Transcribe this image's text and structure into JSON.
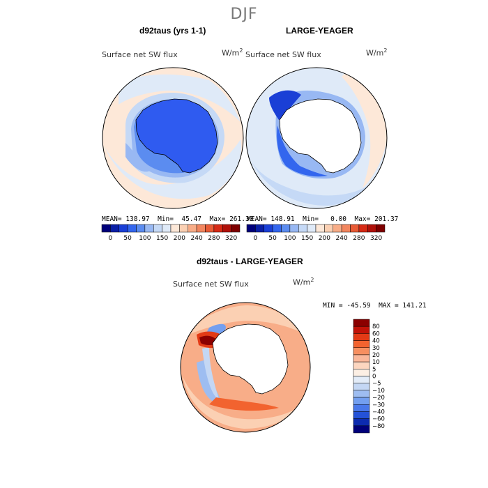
{
  "figure": {
    "season": "DJF",
    "panels": [
      {
        "title": "d92taus (yrs 1-1)",
        "variable": "Surface net SW flux",
        "units_base": "W/m",
        "units_exp": "2",
        "stats": {
          "mean": "MEAN= 138.97",
          "min": "Min=  45.47",
          "max": "Max= 261.30"
        }
      },
      {
        "title": "LARGE-YEAGER",
        "variable": "Surface net SW flux",
        "units_base": "W/m",
        "units_exp": "2",
        "stats": {
          "mean": "MEAN= 148.91",
          "min": "Min=   0.00",
          "max": "Max= 201.37"
        }
      },
      {
        "title": "d92taus - LARGE-YEAGER",
        "variable": "Surface net SW flux",
        "units_base": "W/m",
        "units_exp": "2",
        "stats_line": "MIN = -45.59  MAX = 141.21"
      }
    ],
    "abs_colorbar": {
      "colors": [
        "#00007a",
        "#0a1fa6",
        "#1a3fd6",
        "#3366ee",
        "#5b8cf0",
        "#98b8f3",
        "#c5d9f6",
        "#dfeaf8",
        "#fde8d8",
        "#fbd0b3",
        "#f8ad88",
        "#f2865f",
        "#e85a35",
        "#d62a15",
        "#b0110a",
        "#7e0000"
      ],
      "tick_labels": [
        "0",
        "50",
        "100",
        "150",
        "200",
        "240",
        "280",
        "320"
      ]
    },
    "diff_colorbar": {
      "colors": [
        "#8b0000",
        "#c21208",
        "#e33a16",
        "#f2632f",
        "#f78f60",
        "#fab79a",
        "#fcd6c0",
        "#fcefe4",
        "#e3ecf8",
        "#c4d7f4",
        "#9ebdf1",
        "#739ff0",
        "#4978ea",
        "#2452d8",
        "#0c2bb0",
        "#00007a"
      ],
      "tick_labels": [
        "80",
        "60",
        "40",
        "30",
        "20",
        "10",
        "5",
        "0",
        "−5",
        "−10",
        "−20",
        "−30",
        "−40",
        "−60",
        "−80"
      ]
    }
  }
}
